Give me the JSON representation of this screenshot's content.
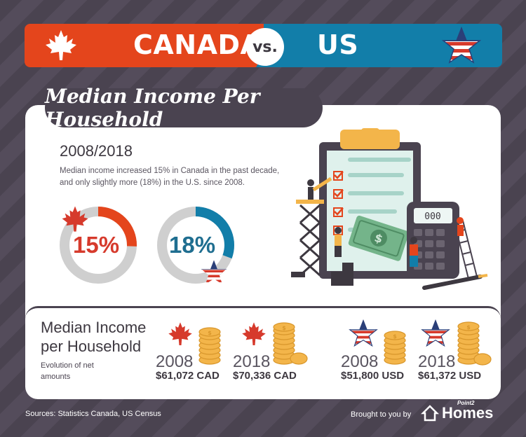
{
  "header": {
    "left_label": "CANADA",
    "vs_label": "vs.",
    "right_label": "US",
    "colors": {
      "canada": "#e4451c",
      "us": "#127ea9"
    },
    "left_icon": "maple-leaf-icon",
    "right_icon": "us-flag-star-icon"
  },
  "section": {
    "title": "Median Income Per Household",
    "year_range": "2008/2018",
    "description": "Median income increased 15% in Canada in the past decade, and only slightly more (18%) in the U.S. since 2008."
  },
  "donuts": [
    {
      "label": "15%",
      "value": 15,
      "color": "#e4451c",
      "icon": "maple-leaf-icon"
    },
    {
      "label": "18%",
      "value": 18,
      "color": "#127ea9",
      "icon": "us-flag-star-icon"
    }
  ],
  "income": {
    "heading": "Median Income per Household",
    "subheading": "Evolution of net amounts",
    "items": [
      {
        "year": "2008",
        "amount": "$61,072 CAD",
        "icon": "maple-leaf-icon"
      },
      {
        "year": "2018",
        "amount": "$70,336 CAD",
        "icon": "maple-leaf-icon"
      },
      {
        "year": "2008",
        "amount": "$51,800 USD",
        "icon": "us-flag-star-icon"
      },
      {
        "year": "2018",
        "amount": "$61,372 USD",
        "icon": "us-flag-star-icon"
      }
    ]
  },
  "footer": {
    "sources": "Sources: Statistics Canada, US Census",
    "brought_by": "Brought to you by",
    "brand_small": "Point2",
    "brand": "Homes"
  }
}
